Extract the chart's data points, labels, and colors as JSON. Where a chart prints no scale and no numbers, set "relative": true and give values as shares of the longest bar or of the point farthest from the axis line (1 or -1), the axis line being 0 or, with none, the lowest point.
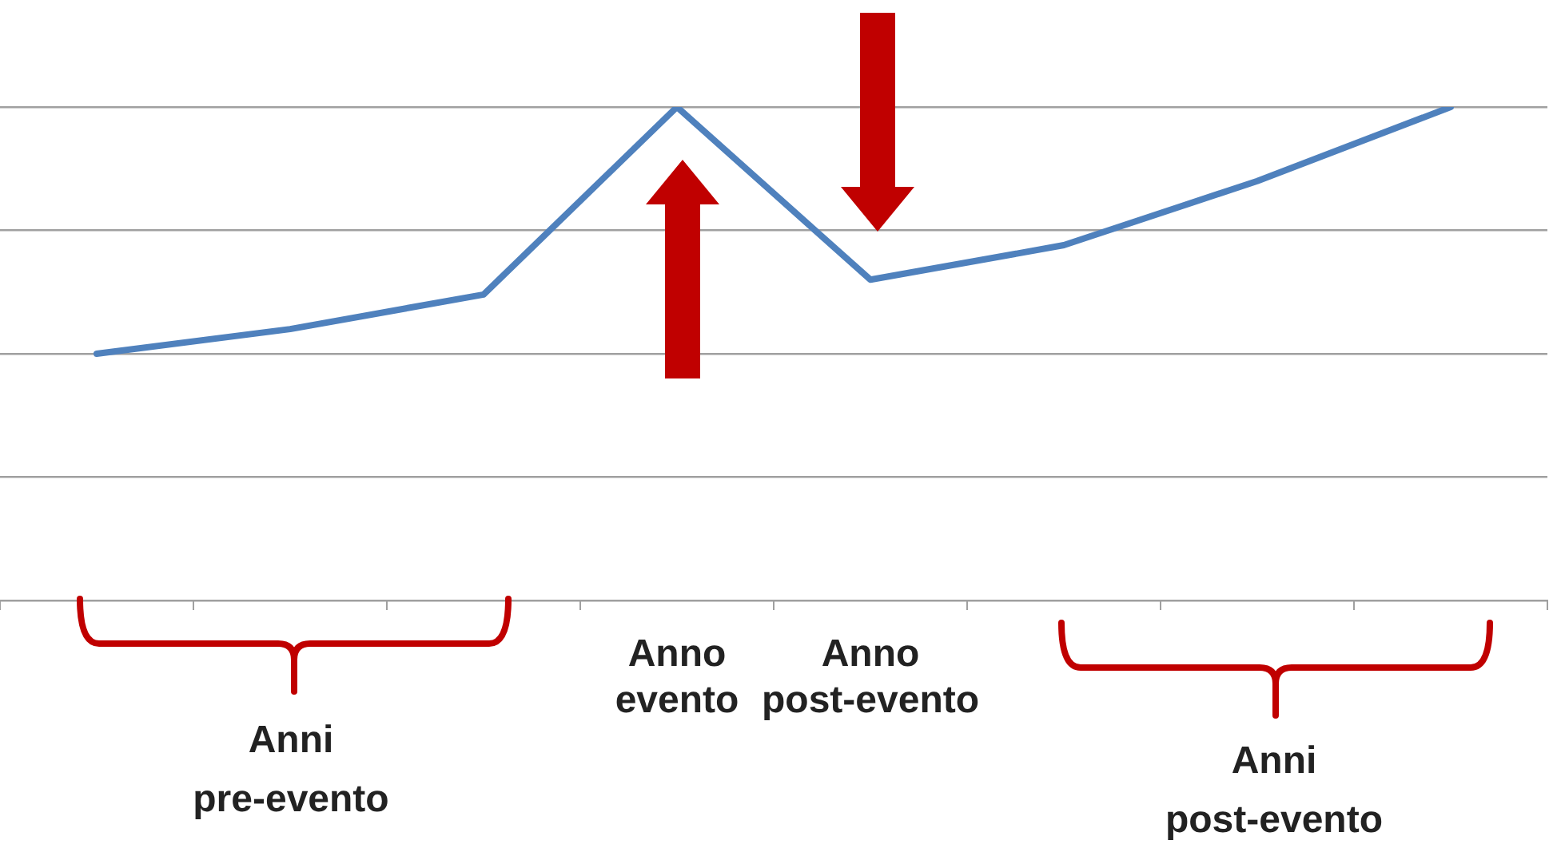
{
  "chart_data": {
    "type": "line",
    "relative": true,
    "categories": [
      null,
      null,
      null,
      "Anno evento",
      "Anno post-evento",
      null,
      null,
      null
    ],
    "series": [
      {
        "color": "#4f81bd",
        "values": [
          0.5,
          0.55,
          0.62,
          1,
          0.65,
          0.72,
          0.85,
          1
        ]
      }
    ],
    "grid": "y",
    "legend": false,
    "marker": "none",
    "line_style": "solid",
    "annotations": [
      "Anni pre-evento",
      "Anni post-evento"
    ]
  }
}
